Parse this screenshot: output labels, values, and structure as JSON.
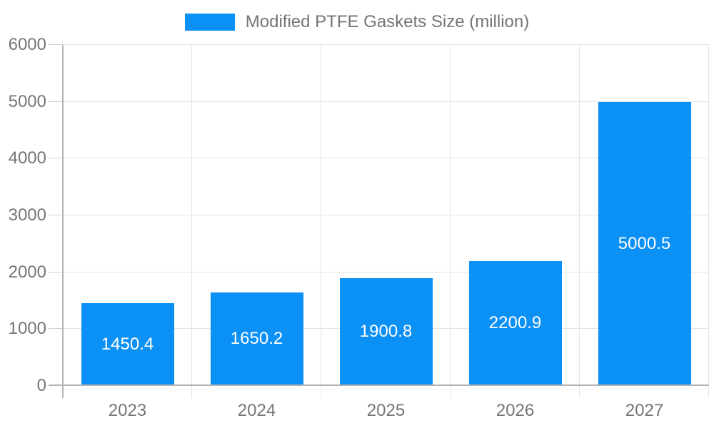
{
  "chart_data": {
    "type": "bar",
    "title": "Modified PTFE Gaskets Size (million)",
    "categories": [
      "2023",
      "2024",
      "2025",
      "2026",
      "2027"
    ],
    "values": [
      1450.4,
      1650.2,
      1900.8,
      2200.9,
      5000.5
    ],
    "value_labels": [
      "1450.4",
      "1650.2",
      "1900.8",
      "2200.9",
      "5000.5"
    ],
    "xlabel": "",
    "ylabel": "",
    "ylim": [
      0,
      6000
    ],
    "y_ticks": [
      0,
      1000,
      2000,
      3000,
      4000,
      5000,
      6000
    ],
    "grid": true,
    "legend_position": "top-center",
    "colors": {
      "bar": "#0b90f5",
      "gridline": "#e4e4e4",
      "axis_line": "#b3b3b3",
      "tick_mark": "#d0d0d0",
      "tick_label": "#757575",
      "value_label": "#ffffff",
      "background": "#ffffff"
    }
  }
}
